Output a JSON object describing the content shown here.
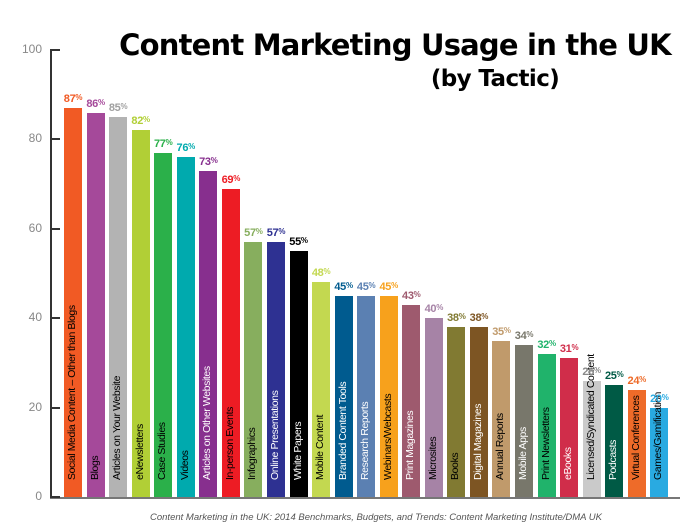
{
  "chart_data": {
    "type": "bar",
    "title": "Content Marketing Usage in the UK",
    "subtitle": "(by Tactic)",
    "xlabel": "",
    "ylabel": "",
    "ylim": [
      0,
      100
    ],
    "yticks": [
      0,
      20,
      40,
      60,
      80,
      100
    ],
    "grid": false,
    "legend": null,
    "value_suffix": "%",
    "categories": [
      "Social Media Content – Other than Blogs",
      "Blogs",
      "Articles on Your Website",
      "eNewsletters",
      "Case Studies",
      "Videos",
      "Articles on Other Websites",
      "In-person Events",
      "Infographics",
      "Online Presentations",
      "White Papers",
      "Mobile Content",
      "Branded Content Tools",
      "Research Reports",
      "Webinars/Webcasts",
      "Print Magazines",
      "Microsites",
      "Books",
      "Digital Magazines",
      "Annual Reports",
      "Mobile Apps",
      "Print Newsletters",
      "eBooks",
      "Licensed/Syndicated Content",
      "Podcasts",
      "Virtual Conferences",
      "Games/Gamification"
    ],
    "values": [
      87,
      86,
      85,
      82,
      77,
      76,
      73,
      69,
      57,
      57,
      55,
      48,
      45,
      45,
      45,
      43,
      40,
      38,
      38,
      35,
      34,
      32,
      31,
      26,
      25,
      24,
      20
    ],
    "colors": [
      "#f15a24",
      "#a5499a",
      "#b3b3b3",
      "#b1cf36",
      "#2bb04a",
      "#00aaae",
      "#872f8e",
      "#ed1c24",
      "#87ae5e",
      "#2e3192",
      "#000000",
      "#c3d850",
      "#005b8f",
      "#5b80b2",
      "#f7a11c",
      "#9e5a6e",
      "#a683a6",
      "#817a32",
      "#7d5523",
      "#c09a6b",
      "#78776b",
      "#20b36b",
      "#d02d4a",
      "#cacaca",
      "#005a45",
      "#ee6b29",
      "#29aae1"
    ],
    "label_colors": [
      "#f15a24",
      "#a5499a",
      "#a0a0a0",
      "#b1cf36",
      "#2bb04a",
      "#00aaae",
      "#872f8e",
      "#ed1c24",
      "#87ae5e",
      "#2e3192",
      "#000000",
      "#c3d850",
      "#005b8f",
      "#5b80b2",
      "#f7a11c",
      "#9e5a6e",
      "#a683a6",
      "#817a32",
      "#7d5523",
      "#c09a6b",
      "#78776b",
      "#20b36b",
      "#d02d4a",
      "#888888",
      "#005a45",
      "#ee6b29",
      "#29aae1"
    ],
    "category_text_colors": [
      "#000",
      "#000",
      "#000",
      "#000",
      "#000",
      "#000",
      "#fff",
      "#000",
      "#000",
      "#fff",
      "#fff",
      "#000",
      "#fff",
      "#fff",
      "#000",
      "#fff",
      "#000",
      "#000",
      "#fff",
      "#000",
      "#fff",
      "#000",
      "#fff",
      "#000",
      "#fff",
      "#000",
      "#000"
    ]
  },
  "caption": "Content Marketing in the UK: 2014 Benchmarks, Budgets, and Trends: Content Marketing Institute/DMA UK"
}
